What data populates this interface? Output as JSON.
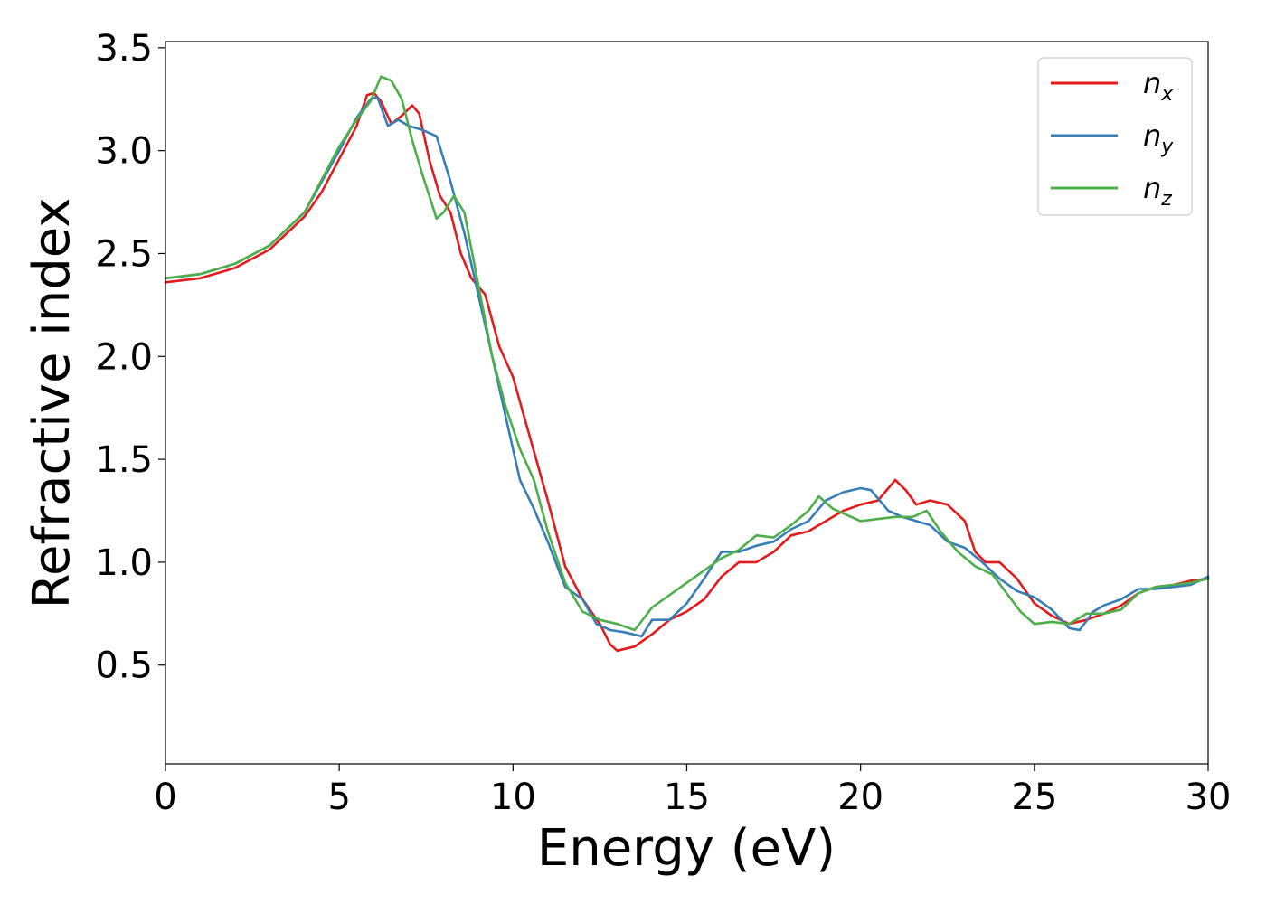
{
  "chart_data": {
    "type": "line",
    "title": "",
    "xlabel": "Energy (eV)",
    "ylabel": "Refractive index",
    "xlim": [
      0,
      30
    ],
    "ylim": [
      0.02,
      3.53
    ],
    "xticks": [
      0,
      5,
      10,
      15,
      20,
      25,
      30
    ],
    "yticks": [
      0.5,
      1.0,
      1.5,
      2.0,
      2.5,
      3.0,
      3.5
    ],
    "xtick_labels": [
      "0",
      "5",
      "10",
      "15",
      "20",
      "25",
      "30"
    ],
    "ytick_labels": [
      "0.5",
      "1.0",
      "1.5",
      "2.0",
      "2.5",
      "3.0",
      "3.5"
    ],
    "grid": false,
    "legend_position": "top-right",
    "series": [
      {
        "name": "n",
        "subscript": "x",
        "color": "#e41a1c",
        "points": [
          [
            0,
            2.36
          ],
          [
            1,
            2.38
          ],
          [
            2,
            2.43
          ],
          [
            3,
            2.52
          ],
          [
            4,
            2.68
          ],
          [
            4.5,
            2.8
          ],
          [
            5,
            2.96
          ],
          [
            5.5,
            3.12
          ],
          [
            5.8,
            3.27
          ],
          [
            6.0,
            3.28
          ],
          [
            6.2,
            3.24
          ],
          [
            6.5,
            3.13
          ],
          [
            6.8,
            3.17
          ],
          [
            7.1,
            3.22
          ],
          [
            7.3,
            3.18
          ],
          [
            7.6,
            2.95
          ],
          [
            7.9,
            2.78
          ],
          [
            8.2,
            2.7
          ],
          [
            8.5,
            2.5
          ],
          [
            8.8,
            2.38
          ],
          [
            9.2,
            2.3
          ],
          [
            9.6,
            2.05
          ],
          [
            10.0,
            1.9
          ],
          [
            10.5,
            1.6
          ],
          [
            11.0,
            1.3
          ],
          [
            11.5,
            0.98
          ],
          [
            12.0,
            0.82
          ],
          [
            12.5,
            0.7
          ],
          [
            12.8,
            0.6
          ],
          [
            13.0,
            0.57
          ],
          [
            13.5,
            0.59
          ],
          [
            14.0,
            0.65
          ],
          [
            14.5,
            0.72
          ],
          [
            15.0,
            0.76
          ],
          [
            15.5,
            0.82
          ],
          [
            16.0,
            0.93
          ],
          [
            16.5,
            1.0
          ],
          [
            17.0,
            1.0
          ],
          [
            17.5,
            1.05
          ],
          [
            18.0,
            1.13
          ],
          [
            18.5,
            1.15
          ],
          [
            19.0,
            1.2
          ],
          [
            19.5,
            1.25
          ],
          [
            20.0,
            1.28
          ],
          [
            20.5,
            1.3
          ],
          [
            21.0,
            1.4
          ],
          [
            21.3,
            1.35
          ],
          [
            21.6,
            1.28
          ],
          [
            22.0,
            1.3
          ],
          [
            22.5,
            1.28
          ],
          [
            23.0,
            1.2
          ],
          [
            23.3,
            1.05
          ],
          [
            23.6,
            1.0
          ],
          [
            24.0,
            1.0
          ],
          [
            24.5,
            0.92
          ],
          [
            25.0,
            0.8
          ],
          [
            25.5,
            0.74
          ],
          [
            26.0,
            0.7
          ],
          [
            26.5,
            0.72
          ],
          [
            27.0,
            0.75
          ],
          [
            27.5,
            0.79
          ],
          [
            28.0,
            0.85
          ],
          [
            28.5,
            0.88
          ],
          [
            29.0,
            0.89
          ],
          [
            29.5,
            0.91
          ],
          [
            30.0,
            0.92
          ]
        ]
      },
      {
        "name": "n",
        "subscript": "y",
        "color": "#377eb8",
        "points": [
          [
            0,
            2.38
          ],
          [
            1,
            2.4
          ],
          [
            2,
            2.45
          ],
          [
            3,
            2.54
          ],
          [
            4,
            2.7
          ],
          [
            4.5,
            2.85
          ],
          [
            5,
            3.0
          ],
          [
            5.5,
            3.16
          ],
          [
            5.9,
            3.25
          ],
          [
            6.1,
            3.26
          ],
          [
            6.4,
            3.12
          ],
          [
            6.7,
            3.15
          ],
          [
            7.0,
            3.12
          ],
          [
            7.4,
            3.1
          ],
          [
            7.8,
            3.07
          ],
          [
            8.2,
            2.85
          ],
          [
            8.6,
            2.6
          ],
          [
            9.0,
            2.3
          ],
          [
            9.4,
            2.0
          ],
          [
            9.8,
            1.7
          ],
          [
            10.2,
            1.4
          ],
          [
            10.6,
            1.26
          ],
          [
            11.0,
            1.1
          ],
          [
            11.5,
            0.88
          ],
          [
            12.0,
            0.82
          ],
          [
            12.4,
            0.7
          ],
          [
            12.8,
            0.67
          ],
          [
            13.2,
            0.66
          ],
          [
            13.7,
            0.64
          ],
          [
            14.0,
            0.72
          ],
          [
            14.5,
            0.72
          ],
          [
            15.0,
            0.8
          ],
          [
            15.5,
            0.92
          ],
          [
            16.0,
            1.05
          ],
          [
            16.5,
            1.05
          ],
          [
            17.0,
            1.08
          ],
          [
            17.5,
            1.1
          ],
          [
            18.0,
            1.16
          ],
          [
            18.5,
            1.2
          ],
          [
            19.0,
            1.3
          ],
          [
            19.5,
            1.34
          ],
          [
            20.0,
            1.36
          ],
          [
            20.3,
            1.35
          ],
          [
            20.8,
            1.25
          ],
          [
            21.2,
            1.22
          ],
          [
            21.6,
            1.2
          ],
          [
            22.0,
            1.18
          ],
          [
            22.5,
            1.1
          ],
          [
            23.0,
            1.07
          ],
          [
            23.5,
            1.0
          ],
          [
            24.0,
            0.92
          ],
          [
            24.5,
            0.86
          ],
          [
            25.0,
            0.83
          ],
          [
            25.5,
            0.77
          ],
          [
            26.0,
            0.68
          ],
          [
            26.3,
            0.67
          ],
          [
            26.7,
            0.76
          ],
          [
            27.0,
            0.79
          ],
          [
            27.5,
            0.82
          ],
          [
            28.0,
            0.87
          ],
          [
            28.5,
            0.87
          ],
          [
            29.0,
            0.88
          ],
          [
            29.5,
            0.89
          ],
          [
            30.0,
            0.93
          ]
        ]
      },
      {
        "name": "n",
        "subscript": "z",
        "color": "#4daf4a",
        "points": [
          [
            0,
            2.38
          ],
          [
            1,
            2.4
          ],
          [
            2,
            2.45
          ],
          [
            3,
            2.54
          ],
          [
            4,
            2.7
          ],
          [
            4.5,
            2.86
          ],
          [
            5,
            3.02
          ],
          [
            5.5,
            3.15
          ],
          [
            5.9,
            3.24
          ],
          [
            6.2,
            3.36
          ],
          [
            6.5,
            3.34
          ],
          [
            6.8,
            3.25
          ],
          [
            7.1,
            3.05
          ],
          [
            7.4,
            2.88
          ],
          [
            7.8,
            2.67
          ],
          [
            8.0,
            2.7
          ],
          [
            8.3,
            2.78
          ],
          [
            8.6,
            2.7
          ],
          [
            9.0,
            2.35
          ],
          [
            9.4,
            2.0
          ],
          [
            9.8,
            1.75
          ],
          [
            10.2,
            1.55
          ],
          [
            10.6,
            1.4
          ],
          [
            11.0,
            1.15
          ],
          [
            11.5,
            0.9
          ],
          [
            12.0,
            0.76
          ],
          [
            12.5,
            0.72
          ],
          [
            13.0,
            0.7
          ],
          [
            13.5,
            0.67
          ],
          [
            14.0,
            0.78
          ],
          [
            14.5,
            0.84
          ],
          [
            15.0,
            0.9
          ],
          [
            15.5,
            0.96
          ],
          [
            16.0,
            1.02
          ],
          [
            16.5,
            1.06
          ],
          [
            17.0,
            1.13
          ],
          [
            17.5,
            1.12
          ],
          [
            18.0,
            1.18
          ],
          [
            18.5,
            1.25
          ],
          [
            18.8,
            1.32
          ],
          [
            19.2,
            1.26
          ],
          [
            19.6,
            1.23
          ],
          [
            20.0,
            1.2
          ],
          [
            20.5,
            1.21
          ],
          [
            21.0,
            1.22
          ],
          [
            21.5,
            1.22
          ],
          [
            21.9,
            1.25
          ],
          [
            22.3,
            1.15
          ],
          [
            22.8,
            1.05
          ],
          [
            23.3,
            0.98
          ],
          [
            23.8,
            0.94
          ],
          [
            24.2,
            0.85
          ],
          [
            24.6,
            0.76
          ],
          [
            25.0,
            0.7
          ],
          [
            25.5,
            0.71
          ],
          [
            26.0,
            0.7
          ],
          [
            26.5,
            0.75
          ],
          [
            27.0,
            0.75
          ],
          [
            27.5,
            0.77
          ],
          [
            28.0,
            0.85
          ],
          [
            28.5,
            0.88
          ],
          [
            29.0,
            0.89
          ],
          [
            29.5,
            0.9
          ],
          [
            30.0,
            0.92
          ]
        ]
      }
    ]
  }
}
